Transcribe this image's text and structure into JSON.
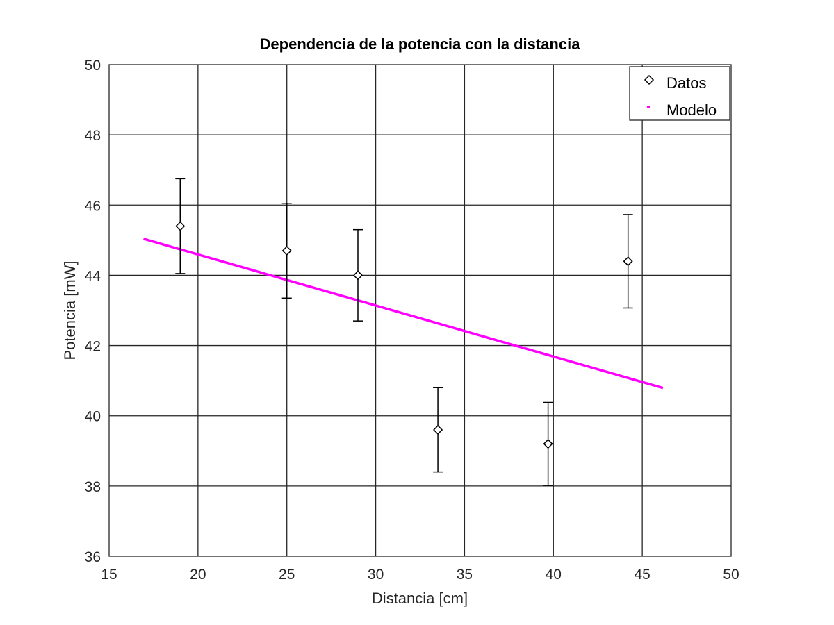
{
  "chart_data": {
    "type": "scatter",
    "title": "Dependencia de la potencia con la distancia",
    "xlabel": "Distancia [cm]",
    "ylabel": "Potencia [mW]",
    "xlim": [
      15,
      50
    ],
    "ylim": [
      36,
      50
    ],
    "xticks": [
      15,
      20,
      25,
      30,
      35,
      40,
      45,
      50
    ],
    "yticks": [
      36,
      38,
      40,
      42,
      44,
      46,
      48,
      50
    ],
    "grid": true,
    "legend_position": "top-right",
    "series": [
      {
        "name": "Datos",
        "kind": "errorbar",
        "marker": "diamond",
        "color": "#000000",
        "x": [
          19.0,
          25.0,
          29.0,
          33.5,
          39.7,
          44.2
        ],
        "y": [
          45.4,
          44.7,
          44.0,
          39.6,
          39.2,
          44.4
        ],
        "error": [
          1.35,
          1.35,
          1.3,
          1.2,
          1.18,
          1.33
        ]
      },
      {
        "name": "Modelo",
        "kind": "line",
        "color": "#ff00ff",
        "x": [
          17.0,
          46.1
        ],
        "y": [
          45.03,
          40.8
        ]
      }
    ]
  }
}
